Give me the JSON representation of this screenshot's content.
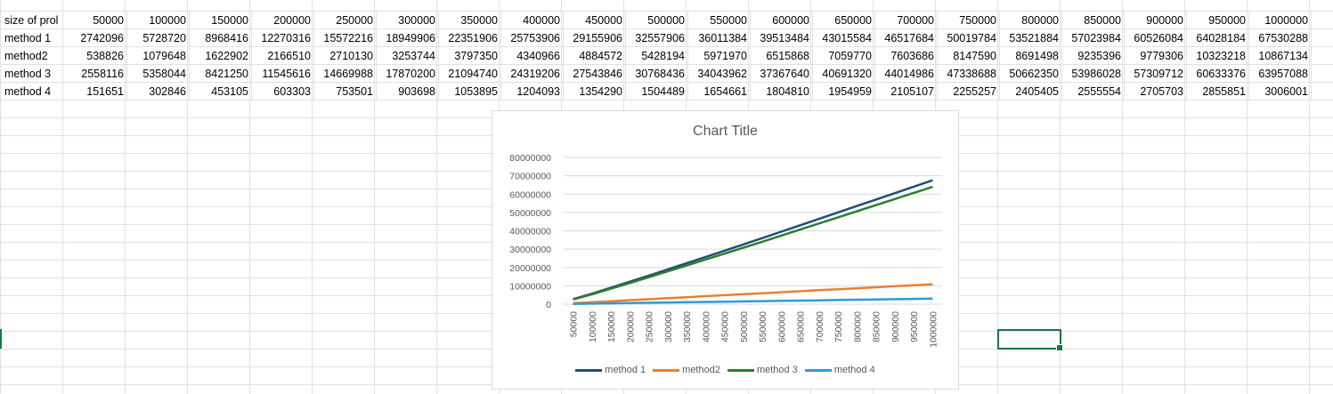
{
  "sheet": {
    "header_row": [
      "size of prol",
      "50000",
      "100000",
      "150000",
      "200000",
      "250000",
      "300000",
      "350000",
      "400000",
      "450000",
      "500000",
      "550000",
      "600000",
      "650000",
      "700000",
      "750000",
      "800000",
      "850000",
      "900000",
      "950000",
      "1000000"
    ],
    "rows": [
      [
        "method 1",
        "2742096",
        "5728720",
        "8968416",
        "12270316",
        "15572216",
        "18949906",
        "22351906",
        "25753906",
        "29155906",
        "32557906",
        "36011384",
        "39513484",
        "43015584",
        "46517684",
        "50019784",
        "53521884",
        "57023984",
        "60526084",
        "64028184",
        "67530288"
      ],
      [
        "method2",
        "538826",
        "1079648",
        "1622902",
        "2166510",
        "2710130",
        "3253744",
        "3797350",
        "4340966",
        "4884572",
        "5428194",
        "5971970",
        "6515868",
        "7059770",
        "7603686",
        "8147590",
        "8691498",
        "9235396",
        "9779306",
        "10323218",
        "10867134"
      ],
      [
        "method 3",
        "2558116",
        "5358044",
        "8421250",
        "11545616",
        "14669988",
        "17870200",
        "21094740",
        "24319206",
        "27543846",
        "30768436",
        "34043962",
        "37367640",
        "40691320",
        "44014986",
        "47338688",
        "50662350",
        "53986028",
        "57309712",
        "60633376",
        "63957088"
      ],
      [
        "method 4",
        "151651",
        "302846",
        "453105",
        "603303",
        "753501",
        "903698",
        "1053895",
        "1204093",
        "1354290",
        "1504489",
        "1654661",
        "1804810",
        "1954959",
        "2105107",
        "2255257",
        "2405405",
        "2555554",
        "2705703",
        "2855851",
        "3006001"
      ]
    ]
  },
  "chart_data": {
    "type": "line",
    "title": "Chart Title",
    "xlabel": "",
    "ylabel": "",
    "categories": [
      "50000",
      "100000",
      "150000",
      "200000",
      "250000",
      "300000",
      "350000",
      "400000",
      "450000",
      "500000",
      "550000",
      "600000",
      "650000",
      "700000",
      "750000",
      "800000",
      "850000",
      "900000",
      "950000",
      "1000000"
    ],
    "ylim": [
      0,
      80000000
    ],
    "yticks": [
      "0",
      "10000000",
      "20000000",
      "30000000",
      "40000000",
      "50000000",
      "60000000",
      "70000000",
      "80000000"
    ],
    "grid": true,
    "legend": "bottom",
    "series": [
      {
        "name": "method 1",
        "color": "#1f4e79",
        "values": [
          2742096,
          5728720,
          8968416,
          12270316,
          15572216,
          18949906,
          22351906,
          25753906,
          29155906,
          32557906,
          36011384,
          39513484,
          43015584,
          46517684,
          50019784,
          53521884,
          57023984,
          60526084,
          64028184,
          67530288
        ]
      },
      {
        "name": "method2",
        "color": "#ed7d31",
        "values": [
          538826,
          1079648,
          1622902,
          2166510,
          2710130,
          3253744,
          3797350,
          4340966,
          4884572,
          5428194,
          5971970,
          6515868,
          7059770,
          7603686,
          8147590,
          8691498,
          9235396,
          9779306,
          10323218,
          10867134
        ]
      },
      {
        "name": "method 3",
        "color": "#2e7d32",
        "values": [
          2558116,
          5358044,
          8421250,
          11545616,
          14669988,
          17870200,
          21094740,
          24319206,
          27543846,
          30768436,
          34043962,
          37367640,
          40691320,
          44014986,
          47338688,
          50662350,
          53986028,
          57309712,
          60633376,
          63957088
        ]
      },
      {
        "name": "method 4",
        "color": "#2e9bd6",
        "values": [
          151651,
          302846,
          453105,
          603303,
          753501,
          903698,
          1053895,
          1204093,
          1354290,
          1504489,
          1654661,
          1804810,
          1954959,
          2105107,
          2255257,
          2405405,
          2555554,
          2705703,
          2855851,
          3006001
        ]
      }
    ]
  }
}
